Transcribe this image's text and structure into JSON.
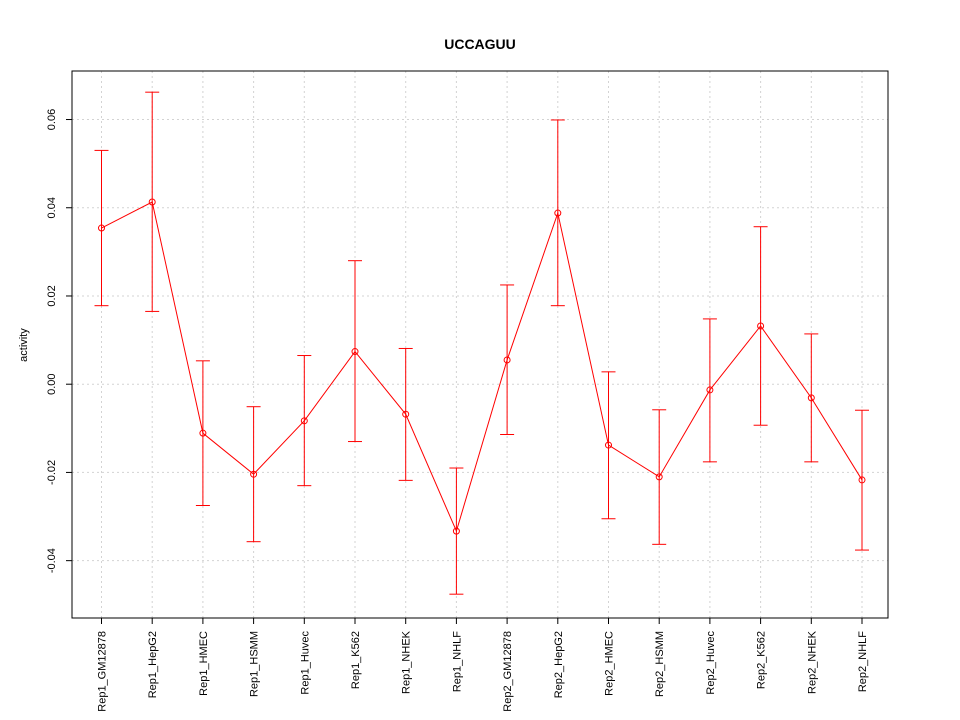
{
  "chart_data": {
    "type": "line",
    "title": "UCCAGUU",
    "xlabel": "",
    "ylabel": "activity",
    "ylim": [
      -0.053,
      0.071
    ],
    "yticks": [
      -0.04,
      -0.02,
      0.0,
      0.02,
      0.04,
      0.06
    ],
    "ytick_labels": [
      "-0.04",
      "-0.02",
      "0.00",
      "0.02",
      "0.04",
      "0.06"
    ],
    "grid": true,
    "categories": [
      "Rep1_GM12878",
      "Rep1_HepG2",
      "Rep1_HMEC",
      "Rep1_HSMM",
      "Rep1_Huvec",
      "Rep1_K562",
      "Rep1_NHEK",
      "Rep1_NHLF",
      "Rep2_GM12878",
      "Rep2_HepG2",
      "Rep2_HMEC",
      "Rep2_HSMM",
      "Rep2_Huvec",
      "Rep2_K562",
      "Rep2_NHEK",
      "Rep2_NHLF"
    ],
    "series": [
      {
        "values": [
          0.0354,
          0.0413,
          -0.0111,
          -0.0204,
          -0.0083,
          0.0074,
          -0.0068,
          -0.0333,
          0.0055,
          0.0388,
          -0.0138,
          -0.021,
          -0.0013,
          0.0132,
          -0.0031,
          -0.0217
        ],
        "upper": [
          0.053,
          0.0662,
          0.0053,
          -0.0051,
          0.0065,
          0.028,
          0.0081,
          -0.019,
          0.0225,
          0.0599,
          0.0028,
          -0.0058,
          0.0148,
          0.0357,
          0.0114,
          -0.0059
        ],
        "lower": [
          0.0178,
          0.0165,
          -0.0275,
          -0.0357,
          -0.023,
          -0.013,
          -0.0218,
          -0.0476,
          -0.0114,
          0.0178,
          -0.0305,
          -0.0363,
          -0.0176,
          -0.0093,
          -0.0176,
          -0.0376
        ],
        "color": "#ff0000"
      }
    ]
  }
}
